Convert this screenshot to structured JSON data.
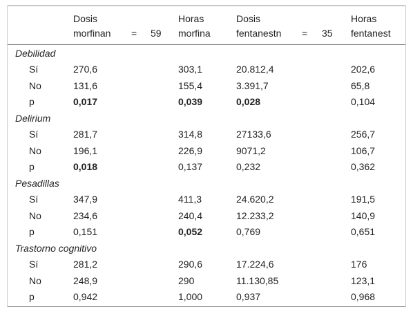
{
  "table": {
    "header": [
      [
        "Dosis",
        "morfinan",
        "=",
        "59"
      ],
      [
        "Horas",
        "morfina"
      ],
      [
        "Dosis",
        "fentanestn",
        "=",
        "35"
      ],
      [
        "Horas",
        "fentanest"
      ]
    ],
    "groups": [
      {
        "name": "Debilidad",
        "rows": [
          {
            "label": "Sí",
            "cells": [
              "270,6",
              "303,1",
              "20.812,4",
              "202,6"
            ],
            "bold": [
              false,
              false,
              false,
              false
            ]
          },
          {
            "label": "No",
            "cells": [
              "131,6",
              "155,4",
              "3.391,7",
              "65,8"
            ],
            "bold": [
              false,
              false,
              false,
              false
            ]
          },
          {
            "label": "p",
            "cells": [
              "0,017",
              "0,039",
              "0,028",
              "0,104"
            ],
            "bold": [
              true,
              true,
              true,
              false
            ]
          }
        ]
      },
      {
        "name": "Delirium",
        "rows": [
          {
            "label": "Sí",
            "cells": [
              "281,7",
              "314,8",
              "27133,6",
              "256,7"
            ],
            "bold": [
              false,
              false,
              false,
              false
            ]
          },
          {
            "label": "No",
            "cells": [
              "196,1",
              "226,9",
              "9071,2",
              "106,7"
            ],
            "bold": [
              false,
              false,
              false,
              false
            ]
          },
          {
            "label": "p",
            "cells": [
              "0,018",
              "0,137",
              "0,232",
              "0,362"
            ],
            "bold": [
              true,
              false,
              false,
              false
            ]
          }
        ]
      },
      {
        "name": "Pesadillas",
        "rows": [
          {
            "label": "Sí",
            "cells": [
              "347,9",
              "411,3",
              "24.620,2",
              "191,5"
            ],
            "bold": [
              false,
              false,
              false,
              false
            ]
          },
          {
            "label": "No",
            "cells": [
              "234,6",
              "240,4",
              "12.233,2",
              "140,9"
            ],
            "bold": [
              false,
              false,
              false,
              false
            ]
          },
          {
            "label": "p",
            "cells": [
              "0,151",
              "0,052",
              "0,769",
              "0,651"
            ],
            "bold": [
              false,
              true,
              false,
              false
            ]
          }
        ]
      },
      {
        "name": "Trastorno cognitivo",
        "rows": [
          {
            "label": "Sí",
            "cells": [
              "281,2",
              "290,6",
              "17.224,6",
              "176"
            ],
            "bold": [
              false,
              false,
              false,
              false
            ]
          },
          {
            "label": "No",
            "cells": [
              "248,9",
              "290",
              "11.130,85",
              "123,1"
            ],
            "bold": [
              false,
              false,
              false,
              false
            ]
          },
          {
            "label": "p",
            "cells": [
              "0,942",
              "1,000",
              "0,937",
              "0,968"
            ],
            "bold": [
              false,
              false,
              false,
              false
            ]
          }
        ]
      }
    ]
  }
}
